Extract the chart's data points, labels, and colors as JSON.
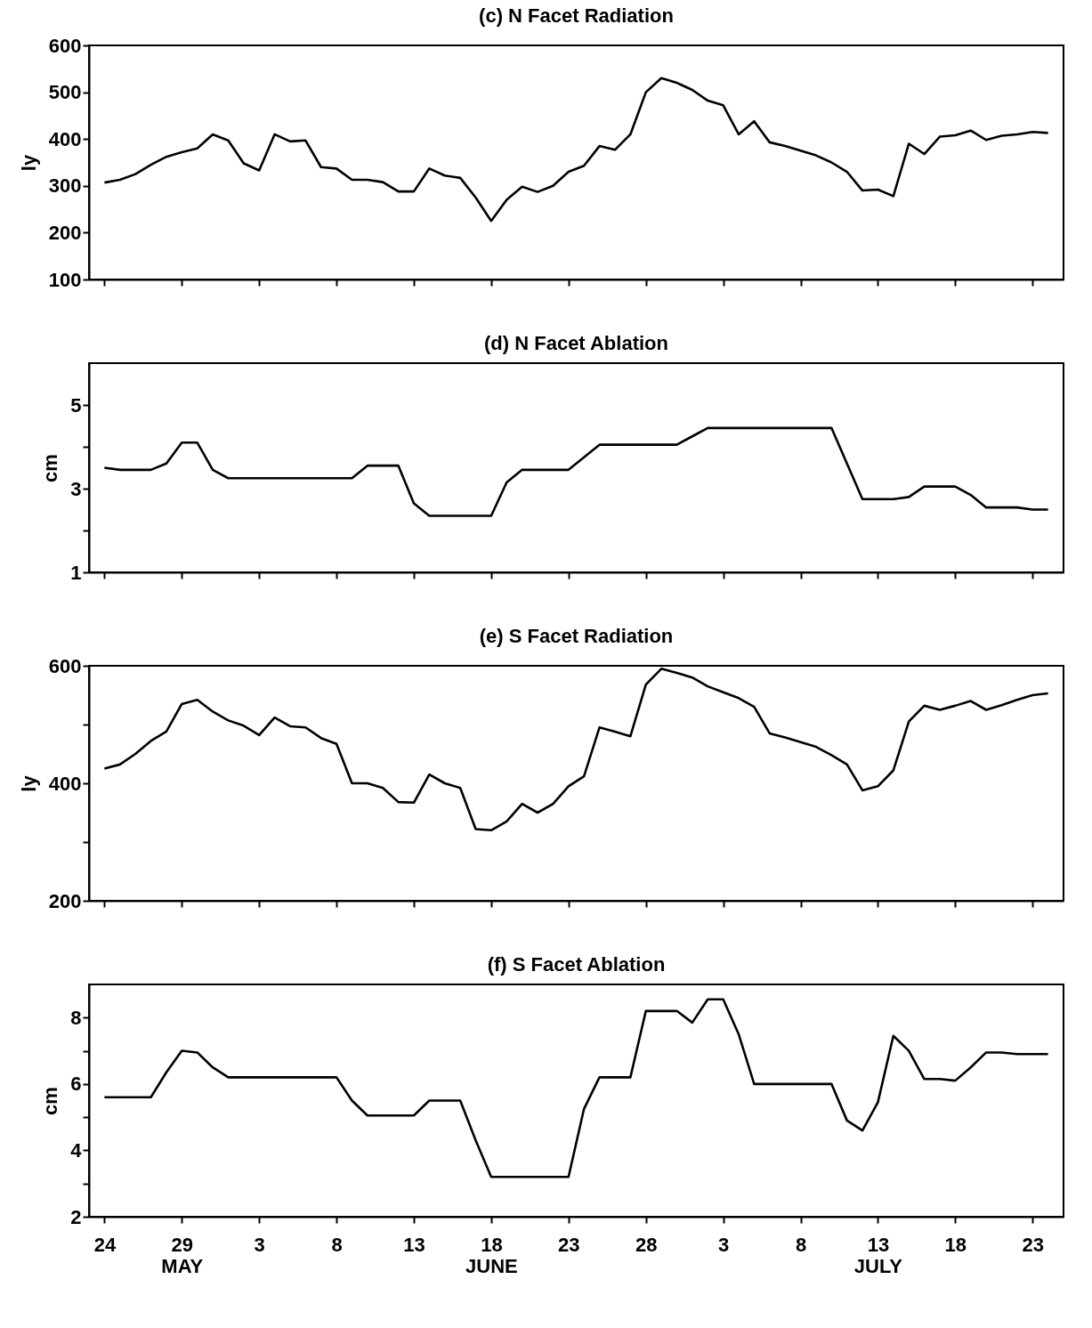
{
  "chart_data": [
    {
      "type": "line",
      "title": "(c) N Facet Radiation",
      "ylabel": "ly",
      "tick_labels": "y",
      "x": [
        "--05-24",
        "--05-25",
        "--05-26",
        "--05-27",
        "--05-28",
        "--05-29",
        "--05-30",
        "--05-31",
        "--06-01",
        "--06-02",
        "--06-03",
        "--06-04",
        "--06-05",
        "--06-06",
        "--06-07",
        "--06-08",
        "--06-09",
        "--06-10",
        "--06-11",
        "--06-12",
        "--06-13",
        "--06-14",
        "--06-15",
        "--06-16",
        "--06-17",
        "--06-18",
        "--06-19",
        "--06-20",
        "--06-21",
        "--06-22",
        "--06-23",
        "--06-24",
        "--06-25",
        "--06-26",
        "--06-27",
        "--06-28",
        "--06-29",
        "--06-30",
        "--07-01",
        "--07-02",
        "--07-03",
        "--07-04",
        "--07-05",
        "--07-06",
        "--07-07",
        "--07-08",
        "--07-09",
        "--07-10",
        "--07-11",
        "--07-12",
        "--07-13",
        "--07-14",
        "--07-15",
        "--07-16",
        "--07-17",
        "--07-18",
        "--07-19",
        "--07-20",
        "--07-21",
        "--07-22",
        "--07-23",
        "--07-24"
      ],
      "series": [
        {
          "color": "#000000",
          "values": [
            307,
            313,
            325,
            345,
            362,
            372,
            380,
            410,
            397,
            348,
            333,
            410,
            395,
            397,
            340,
            337,
            313,
            313,
            308,
            288,
            288,
            337,
            322,
            317,
            275,
            225,
            270,
            298,
            287,
            300,
            330,
            343,
            385,
            377,
            410,
            500,
            530,
            520,
            505,
            482,
            472,
            410,
            438,
            393,
            385,
            375,
            365,
            350,
            330,
            290,
            292,
            278,
            390,
            368,
            405,
            408,
            418,
            398,
            407,
            410,
            415,
            413
          ]
        }
      ],
      "xlim": [
        "--05-23",
        "--07-25"
      ],
      "xticks": [
        {
          "value": "--05-24",
          "label": "24"
        },
        {
          "value": "--05-29",
          "label": "29\nMAY"
        },
        {
          "value": "--06-03",
          "label": "3"
        },
        {
          "value": "--06-08",
          "label": "8"
        },
        {
          "value": "--06-13",
          "label": "13"
        },
        {
          "value": "--06-18",
          "label": "18\nJUNE"
        },
        {
          "value": "--06-23",
          "label": "23"
        },
        {
          "value": "--06-28",
          "label": "28"
        },
        {
          "value": "--07-03",
          "label": "3"
        },
        {
          "value": "--07-08",
          "label": "8"
        },
        {
          "value": "--07-13",
          "label": "13\nJULY"
        },
        {
          "value": "--07-18",
          "label": "18"
        },
        {
          "value": "--07-23",
          "label": "23"
        }
      ],
      "ylim": [
        100,
        600
      ],
      "yticks": [
        100,
        200,
        300,
        400,
        500,
        600
      ]
    },
    {
      "type": "line",
      "title": "(d) N Facet Ablation",
      "ylabel": "cm",
      "tick_labels": "y",
      "x": [
        "--05-24",
        "--05-25",
        "--05-26",
        "--05-27",
        "--05-28",
        "--05-29",
        "--05-30",
        "--05-31",
        "--06-01",
        "--06-02",
        "--06-03",
        "--06-04",
        "--06-05",
        "--06-06",
        "--06-07",
        "--06-08",
        "--06-09",
        "--06-10",
        "--06-11",
        "--06-12",
        "--06-13",
        "--06-14",
        "--06-15",
        "--06-16",
        "--06-17",
        "--06-18",
        "--06-19",
        "--06-20",
        "--06-21",
        "--06-22",
        "--06-23",
        "--06-24",
        "--06-25",
        "--06-26",
        "--06-27",
        "--06-28",
        "--06-29",
        "--06-30",
        "--07-01",
        "--07-02",
        "--07-03",
        "--07-04",
        "--07-05",
        "--07-06",
        "--07-07",
        "--07-08",
        "--07-09",
        "--07-10",
        "--07-11",
        "--07-12",
        "--07-13",
        "--07-14",
        "--07-15",
        "--07-16",
        "--07-17",
        "--07-18",
        "--07-19",
        "--07-20",
        "--07-21",
        "--07-22",
        "--07-23",
        "--07-24"
      ],
      "series": [
        {
          "color": "#000000",
          "values": [
            3.5,
            3.45,
            3.45,
            3.45,
            3.6,
            4.1,
            4.1,
            3.45,
            3.25,
            3.25,
            3.25,
            3.25,
            3.25,
            3.25,
            3.25,
            3.25,
            3.25,
            3.55,
            3.55,
            3.55,
            2.65,
            2.35,
            2.35,
            2.35,
            2.35,
            2.35,
            3.15,
            3.45,
            3.45,
            3.45,
            3.45,
            3.75,
            4.05,
            4.05,
            4.05,
            4.05,
            4.05,
            4.05,
            4.25,
            4.45,
            4.45,
            4.45,
            4.45,
            4.45,
            4.45,
            4.45,
            4.45,
            4.45,
            3.6,
            2.75,
            2.75,
            2.75,
            2.8,
            3.05,
            3.05,
            3.05,
            2.85,
            2.55,
            2.55,
            2.55,
            2.5,
            2.5
          ]
        }
      ],
      "xlim": [
        "--05-23",
        "--07-25"
      ],
      "xticks": [
        {
          "value": "--05-24",
          "label": "24"
        },
        {
          "value": "--05-29",
          "label": "29\nMAY"
        },
        {
          "value": "--06-03",
          "label": "3"
        },
        {
          "value": "--06-08",
          "label": "8"
        },
        {
          "value": "--06-13",
          "label": "13"
        },
        {
          "value": "--06-18",
          "label": "18\nJUNE"
        },
        {
          "value": "--06-23",
          "label": "23"
        },
        {
          "value": "--06-28",
          "label": "28"
        },
        {
          "value": "--07-03",
          "label": "3"
        },
        {
          "value": "--07-08",
          "label": "8"
        },
        {
          "value": "--07-13",
          "label": "13\nJULY"
        },
        {
          "value": "--07-18",
          "label": "18"
        },
        {
          "value": "--07-23",
          "label": "23"
        }
      ],
      "ylim": [
        1,
        6
      ],
      "yticks": [
        1,
        {
          "value": 2,
          "label": null
        },
        3,
        {
          "value": 4,
          "label": null
        },
        5
      ]
    },
    {
      "type": "line",
      "title": "(e) S Facet Radiation",
      "ylabel": "ly",
      "tick_labels": "y",
      "x": [
        "--05-24",
        "--05-25",
        "--05-26",
        "--05-27",
        "--05-28",
        "--05-29",
        "--05-30",
        "--05-31",
        "--06-01",
        "--06-02",
        "--06-03",
        "--06-04",
        "--06-05",
        "--06-06",
        "--06-07",
        "--06-08",
        "--06-09",
        "--06-10",
        "--06-11",
        "--06-12",
        "--06-13",
        "--06-14",
        "--06-15",
        "--06-16",
        "--06-17",
        "--06-18",
        "--06-19",
        "--06-20",
        "--06-21",
        "--06-22",
        "--06-23",
        "--06-24",
        "--06-25",
        "--06-26",
        "--06-27",
        "--06-28",
        "--06-29",
        "--06-30",
        "--07-01",
        "--07-02",
        "--07-03",
        "--07-04",
        "--07-05",
        "--07-06",
        "--07-07",
        "--07-08",
        "--07-09",
        "--07-10",
        "--07-11",
        "--07-12",
        "--07-13",
        "--07-14",
        "--07-15",
        "--07-16",
        "--07-17",
        "--07-18",
        "--07-19",
        "--07-20",
        "--07-21",
        "--07-22",
        "--07-23",
        "--07-24"
      ],
      "series": [
        {
          "color": "#000000",
          "values": [
            425,
            432,
            450,
            472,
            488,
            535,
            542,
            522,
            507,
            498,
            482,
            512,
            497,
            495,
            477,
            467,
            400,
            400,
            392,
            368,
            367,
            415,
            400,
            392,
            322,
            320,
            335,
            365,
            350,
            365,
            395,
            412,
            495,
            488,
            480,
            568,
            595,
            588,
            580,
            565,
            555,
            545,
            530,
            485,
            478,
            470,
            462,
            448,
            432,
            388,
            395,
            422,
            505,
            532,
            525,
            532,
            540,
            525,
            533,
            542,
            550,
            553
          ]
        }
      ],
      "xlim": [
        "--05-23",
        "--07-25"
      ],
      "xticks": [
        {
          "value": "--05-24",
          "label": "24"
        },
        {
          "value": "--05-29",
          "label": "29\nMAY"
        },
        {
          "value": "--06-03",
          "label": "3"
        },
        {
          "value": "--06-08",
          "label": "8"
        },
        {
          "value": "--06-13",
          "label": "13"
        },
        {
          "value": "--06-18",
          "label": "18\nJUNE"
        },
        {
          "value": "--06-23",
          "label": "23"
        },
        {
          "value": "--06-28",
          "label": "28"
        },
        {
          "value": "--07-03",
          "label": "3"
        },
        {
          "value": "--07-08",
          "label": "8"
        },
        {
          "value": "--07-13",
          "label": "13\nJULY"
        },
        {
          "value": "--07-18",
          "label": "18"
        },
        {
          "value": "--07-23",
          "label": "23"
        }
      ],
      "ylim": [
        200,
        600
      ],
      "yticks": [
        200,
        {
          "value": 300,
          "label": null
        },
        400,
        {
          "value": 500,
          "label": null
        },
        600
      ]
    },
    {
      "type": "line",
      "title": "(f) S Facet Ablation",
      "ylabel": "cm",
      "x": [
        "--05-24",
        "--05-25",
        "--05-26",
        "--05-27",
        "--05-28",
        "--05-29",
        "--05-30",
        "--05-31",
        "--06-01",
        "--06-02",
        "--06-03",
        "--06-04",
        "--06-05",
        "--06-06",
        "--06-07",
        "--06-08",
        "--06-09",
        "--06-10",
        "--06-11",
        "--06-12",
        "--06-13",
        "--06-14",
        "--06-15",
        "--06-16",
        "--06-17",
        "--06-18",
        "--06-19",
        "--06-20",
        "--06-21",
        "--06-22",
        "--06-23",
        "--06-24",
        "--06-25",
        "--06-26",
        "--06-27",
        "--06-28",
        "--06-29",
        "--06-30",
        "--07-01",
        "--07-02",
        "--07-03",
        "--07-04",
        "--07-05",
        "--07-06",
        "--07-07",
        "--07-08",
        "--07-09",
        "--07-10",
        "--07-11",
        "--07-12",
        "--07-13",
        "--07-14",
        "--07-15",
        "--07-16",
        "--07-17",
        "--07-18",
        "--07-19",
        "--07-20",
        "--07-21",
        "--07-22",
        "--07-23",
        "--07-24"
      ],
      "series": [
        {
          "color": "#000000",
          "values": [
            5.6,
            5.6,
            5.6,
            5.6,
            6.35,
            7,
            6.95,
            6.5,
            6.2,
            6.2,
            6.2,
            6.2,
            6.2,
            6.2,
            6.2,
            6.2,
            5.5,
            5.05,
            5.05,
            5.05,
            5.05,
            5.5,
            5.5,
            5.5,
            4.3,
            3.2,
            3.2,
            3.2,
            3.2,
            3.2,
            3.2,
            5.25,
            6.2,
            6.2,
            6.2,
            8.2,
            8.2,
            8.2,
            7.85,
            8.55,
            8.55,
            7.5,
            6,
            6,
            6,
            6,
            6,
            6,
            4.9,
            4.6,
            5.45,
            7.45,
            7,
            6.15,
            6.15,
            6.1,
            6.5,
            6.95,
            6.95,
            6.9,
            6.9,
            6.9
          ]
        }
      ],
      "xlim": [
        "--05-23",
        "--07-25"
      ],
      "xticks": [
        {
          "value": "--05-24",
          "label": "24"
        },
        {
          "value": "--05-29",
          "label": "29\nMAY"
        },
        {
          "value": "--06-03",
          "label": "3"
        },
        {
          "value": "--06-08",
          "label": "8"
        },
        {
          "value": "--06-13",
          "label": "13"
        },
        {
          "value": "--06-18",
          "label": "18\nJUNE"
        },
        {
          "value": "--06-23",
          "label": "23"
        },
        {
          "value": "--06-28",
          "label": "28"
        },
        {
          "value": "--07-03",
          "label": "3"
        },
        {
          "value": "--07-08",
          "label": "8"
        },
        {
          "value": "--07-13",
          "label": "13\nJULY"
        },
        {
          "value": "--07-18",
          "label": "18"
        },
        {
          "value": "--07-23",
          "label": "23"
        }
      ],
      "ylim": [
        2,
        9
      ],
      "yticks": [
        2,
        {
          "value": 3,
          "label": null
        },
        4,
        {
          "value": 5,
          "label": null
        },
        6,
        {
          "value": 7,
          "label": null
        },
        8
      ]
    }
  ]
}
